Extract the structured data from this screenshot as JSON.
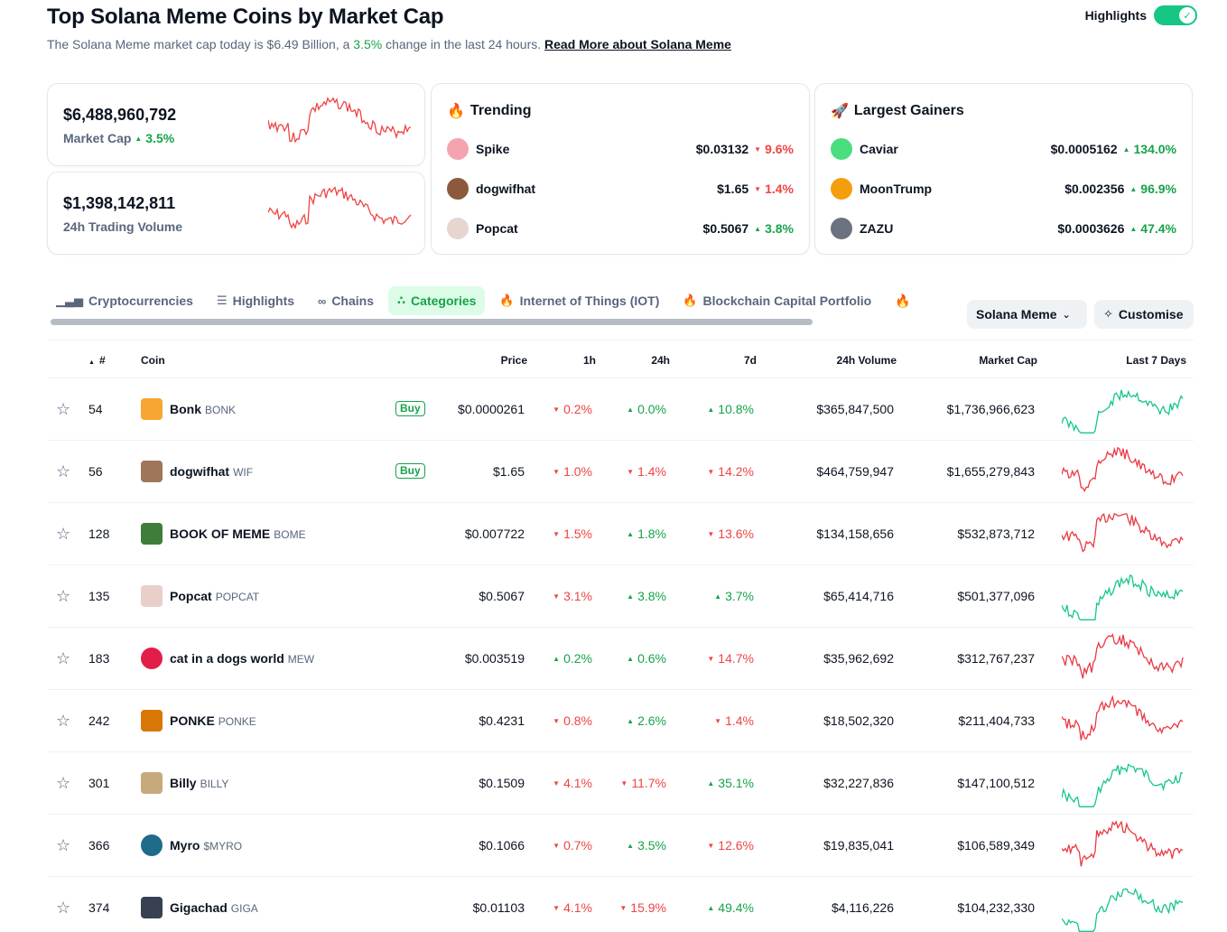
{
  "header": {
    "title": "Top Solana Meme Coins by Market Cap",
    "subtitle_prefix": "The Solana Meme market cap today is $6.49 Billion, a ",
    "subtitle_change": "3.5%",
    "subtitle_suffix": " change in the last 24 hours. ",
    "read_more": "Read More about Solana Meme",
    "highlights_label": "Highlights",
    "highlights_on": true
  },
  "stats": {
    "market_cap": {
      "value": "$6,488,960,792",
      "label": "Market Cap",
      "change": "3.5%"
    },
    "volume": {
      "value": "$1,398,142,811",
      "label": "24h Trading Volume"
    }
  },
  "trending": {
    "title": "Trending",
    "icon": "fire-icon",
    "items": [
      {
        "name": "Spike",
        "price": "$0.03132",
        "change": "9.6%",
        "dir": "down",
        "color": "#f4a3b0"
      },
      {
        "name": "dogwifhat",
        "price": "$1.65",
        "change": "1.4%",
        "dir": "down",
        "color": "#8b5a3c"
      },
      {
        "name": "Popcat",
        "price": "$0.5067",
        "change": "3.8%",
        "dir": "up",
        "color": "#e8d5cf"
      }
    ]
  },
  "gainers": {
    "title": "Largest Gainers",
    "icon": "rocket-icon",
    "items": [
      {
        "name": "Caviar",
        "price": "$0.0005162",
        "change": "134.0%",
        "dir": "up",
        "color": "#4ade80"
      },
      {
        "name": "MoonTrump",
        "price": "$0.002356",
        "change": "96.9%",
        "dir": "up",
        "color": "#f59e0b"
      },
      {
        "name": "ZAZU",
        "price": "$0.0003626",
        "change": "47.4%",
        "dir": "up",
        "color": "#6b7280"
      }
    ]
  },
  "tabs": [
    {
      "label": "Cryptocurrencies",
      "icon": "bar-chart-icon",
      "active": false
    },
    {
      "label": "Highlights",
      "icon": "list-icon",
      "active": false
    },
    {
      "label": "Chains",
      "icon": "link-icon",
      "active": false
    },
    {
      "label": "Categories",
      "icon": "categories-icon",
      "active": true
    },
    {
      "label": "Internet of Things (IOT)",
      "icon": "fire-icon",
      "active": false
    },
    {
      "label": "Blockchain Capital Portfolio",
      "icon": "fire-icon",
      "active": false
    }
  ],
  "filters": {
    "category": "Solana Meme",
    "customise": "Customise"
  },
  "table": {
    "headers": {
      "rank": "#",
      "coin": "Coin",
      "price": "Price",
      "h1": "1h",
      "h24": "24h",
      "d7": "7d",
      "volume": "24h Volume",
      "mcap": "Market Cap",
      "last7": "Last 7 Days"
    },
    "buy_label": "Buy",
    "rows": [
      {
        "rank": "54",
        "name": "Bonk",
        "symbol": "BONK",
        "buy": true,
        "price": "$0.0000261",
        "h1": "0.2%",
        "h1_dir": "down",
        "h24": "0.0%",
        "h24_dir": "up",
        "d7": "10.8%",
        "d7_dir": "up",
        "volume": "$365,847,500",
        "mcap": "$1,736,966,623",
        "trend": "up",
        "color": "#f7a631"
      },
      {
        "rank": "56",
        "name": "dogwifhat",
        "symbol": "WIF",
        "buy": true,
        "price": "$1.65",
        "h1": "1.0%",
        "h1_dir": "down",
        "h24": "1.4%",
        "h24_dir": "down",
        "d7": "14.2%",
        "d7_dir": "down",
        "volume": "$464,759,947",
        "mcap": "$1,655,279,843",
        "trend": "down",
        "color": "#a0765a"
      },
      {
        "rank": "128",
        "name": "BOOK OF MEME",
        "symbol": "BOME",
        "buy": false,
        "price": "$0.007722",
        "h1": "1.5%",
        "h1_dir": "down",
        "h24": "1.8%",
        "h24_dir": "up",
        "d7": "13.6%",
        "d7_dir": "down",
        "volume": "$134,158,656",
        "mcap": "$532,873,712",
        "trend": "down",
        "color": "#3f7d3a"
      },
      {
        "rank": "135",
        "name": "Popcat",
        "symbol": "POPCAT",
        "buy": false,
        "price": "$0.5067",
        "h1": "3.1%",
        "h1_dir": "down",
        "h24": "3.8%",
        "h24_dir": "up",
        "d7": "3.7%",
        "d7_dir": "up",
        "volume": "$65,414,716",
        "mcap": "$501,377,096",
        "trend": "up",
        "color": "#e8cfc8"
      },
      {
        "rank": "183",
        "name": "cat in a dogs world",
        "symbol": "MEW",
        "buy": false,
        "price": "$0.003519",
        "h1": "0.2%",
        "h1_dir": "up",
        "h24": "0.6%",
        "h24_dir": "up",
        "d7": "14.7%",
        "d7_dir": "down",
        "volume": "$35,962,692",
        "mcap": "$312,767,237",
        "trend": "down",
        "color": "#e11d48"
      },
      {
        "rank": "242",
        "name": "PONKE",
        "symbol": "PONKE",
        "buy": false,
        "price": "$0.4231",
        "h1": "0.8%",
        "h1_dir": "down",
        "h24": "2.6%",
        "h24_dir": "up",
        "d7": "1.4%",
        "d7_dir": "down",
        "volume": "$18,502,320",
        "mcap": "$211,404,733",
        "trend": "down",
        "color": "#d97706"
      },
      {
        "rank": "301",
        "name": "Billy",
        "symbol": "BILLY",
        "buy": false,
        "price": "$0.1509",
        "h1": "4.1%",
        "h1_dir": "down",
        "h24": "11.7%",
        "h24_dir": "down",
        "d7": "35.1%",
        "d7_dir": "up",
        "volume": "$32,227,836",
        "mcap": "$147,100,512",
        "trend": "up",
        "color": "#c8a97e"
      },
      {
        "rank": "366",
        "name": "Myro",
        "symbol": "$MYRO",
        "buy": false,
        "price": "$0.1066",
        "h1": "0.7%",
        "h1_dir": "down",
        "h24": "3.5%",
        "h24_dir": "up",
        "d7": "12.6%",
        "d7_dir": "down",
        "volume": "$19,835,041",
        "mcap": "$106,589,349",
        "trend": "down",
        "color": "#1e6b8a"
      },
      {
        "rank": "374",
        "name": "Gigachad",
        "symbol": "GIGA",
        "buy": false,
        "price": "$0.01103",
        "h1": "4.1%",
        "h1_dir": "down",
        "h24": "15.9%",
        "h24_dir": "down",
        "d7": "49.4%",
        "d7_dir": "up",
        "volume": "$4,116,226",
        "mcap": "$104,232,330",
        "trend": "up",
        "color": "#374151"
      }
    ]
  }
}
